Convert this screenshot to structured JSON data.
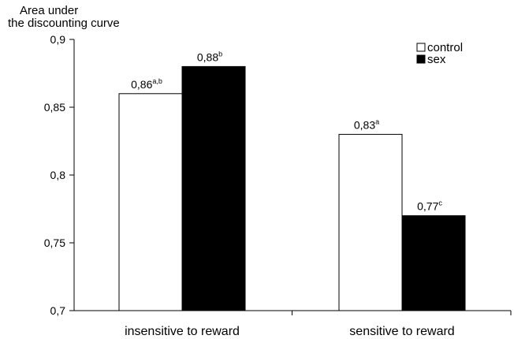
{
  "chart_data": {
    "type": "bar",
    "ylabel_lines": [
      "Area under",
      "the discounting curve"
    ],
    "ylim": [
      0.7,
      0.9
    ],
    "yticks": [
      0.7,
      0.75,
      0.8,
      0.85,
      0.9
    ],
    "ytick_labels": [
      "0,7",
      "0,75",
      "0,8",
      "0,85",
      "0,9"
    ],
    "categories": [
      "insensitive to reward",
      "sensitive to reward"
    ],
    "series": [
      {
        "name": "control",
        "color": "#ffffff",
        "values": [
          0.86,
          0.83
        ],
        "value_labels": [
          "0,86",
          "0,83"
        ],
        "superscripts": [
          "a,b",
          "a"
        ]
      },
      {
        "name": "sex",
        "color": "#000000",
        "values": [
          0.88,
          0.77
        ],
        "value_labels": [
          "0,88",
          "0,77"
        ],
        "superscripts": [
          "b",
          "c"
        ]
      }
    ],
    "legend_position": "top-right",
    "grid": false
  }
}
